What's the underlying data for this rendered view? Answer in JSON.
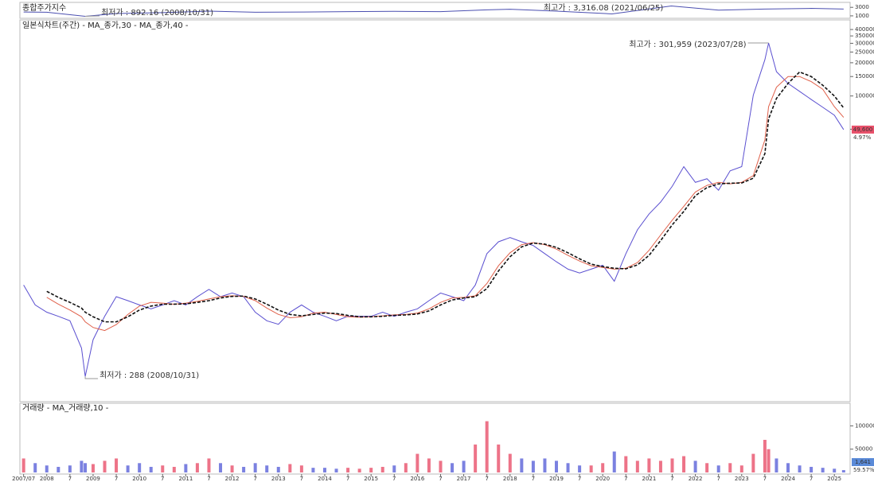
{
  "chart_data": [
    {
      "type": "line",
      "title": "종합주가지수",
      "x": [
        2007.5,
        2008.0,
        2008.83,
        2009.5,
        2010.5,
        2011.5,
        2012.5,
        2013.5,
        2014.5,
        2015.5,
        2016.5,
        2017.5,
        2018.0,
        2019.0,
        2020.2,
        2021.48,
        2022.5,
        2023.5,
        2024.5,
        2025.2
      ],
      "series": [
        {
          "color": "#4b4fb0",
          "values": [
            1900,
            1850,
            892.16,
            1550,
            1750,
            2100,
            1850,
            1900,
            2000,
            2050,
            2000,
            2400,
            2550,
            2100,
            1460,
            3316.08,
            2350,
            2600,
            2750,
            2600
          ]
        }
      ],
      "xlim": [
        2007.42,
        2025.34
      ],
      "ylim": [
        800,
        3600
      ],
      "yticks": [
        1000,
        3000
      ],
      "annotations": [
        "최고가 : 3,316.08 (2021/06/25)",
        "최저가 : 892.16 (2008/10/31)"
      ]
    },
    {
      "type": "line",
      "title": "일본식차트(주간) - MA_종가,30 - MA_종가,40 -",
      "log": true,
      "x": [
        2007.5,
        2007.75,
        2008.0,
        2008.25,
        2008.5,
        2008.75,
        2008.83,
        2009.0,
        2009.25,
        2009.5,
        2009.75,
        2010.0,
        2010.25,
        2010.5,
        2010.75,
        2011.0,
        2011.25,
        2011.5,
        2011.75,
        2012.0,
        2012.25,
        2012.5,
        2012.75,
        2013.0,
        2013.25,
        2013.5,
        2013.75,
        2014.0,
        2014.25,
        2014.5,
        2014.75,
        2015.0,
        2015.25,
        2015.5,
        2015.75,
        2016.0,
        2016.25,
        2016.5,
        2016.75,
        2017.0,
        2017.25,
        2017.5,
        2017.75,
        2018.0,
        2018.25,
        2018.5,
        2018.75,
        2019.0,
        2019.25,
        2019.5,
        2019.75,
        2020.0,
        2020.25,
        2020.5,
        2020.75,
        2021.0,
        2021.25,
        2021.5,
        2021.75,
        2022.0,
        2022.25,
        2022.5,
        2022.75,
        2023.0,
        2023.25,
        2023.5,
        2023.58,
        2023.75,
        2024.0,
        2024.25,
        2024.5,
        2024.75,
        2025.0,
        2025.2
      ],
      "series": [
        {
          "color": "#5a4fd0",
          "values": [
            1940,
            1280,
            1100,
            1010,
            920,
            520,
            288,
            620,
            1010,
            1520,
            1400,
            1280,
            1180,
            1280,
            1400,
            1280,
            1520,
            1770,
            1520,
            1640,
            1520,
            1100,
            920,
            855,
            1100,
            1280,
            1100,
            1010,
            920,
            1010,
            1010,
            1010,
            1100,
            1010,
            1100,
            1180,
            1400,
            1640,
            1520,
            1400,
            1940,
            3730,
            4780,
            5220,
            4780,
            4420,
            3730,
            3150,
            2700,
            2490,
            2700,
            2930,
            2100,
            3730,
            6140,
            8530,
            10950,
            15190,
            22900,
            16500,
            17800,
            14000,
            21000,
            22900,
            101700,
            213000,
            301959,
            166000,
            130000,
            110000,
            93000,
            79000,
            67000,
            49600
          ]
        },
        {
          "color": "#e0604a",
          "values": [
            null,
            null,
            1500,
            1300,
            1150,
            1000,
            900,
            800,
            750,
            850,
            1050,
            1250,
            1350,
            1330,
            1300,
            1330,
            1380,
            1450,
            1520,
            1550,
            1530,
            1400,
            1200,
            1050,
            980,
            1000,
            1080,
            1100,
            1050,
            1000,
            990,
            1000,
            1020,
            1040,
            1050,
            1080,
            1180,
            1350,
            1480,
            1500,
            1550,
            2000,
            2900,
            3800,
            4500,
            4700,
            4500,
            4100,
            3600,
            3200,
            2900,
            2800,
            2700,
            2750,
            3100,
            4000,
            5500,
            7500,
            10000,
            13500,
            15500,
            16500,
            16000,
            16500,
            19000,
            40000,
            80000,
            120000,
            150000,
            150000,
            135000,
            115000,
            80000,
            64000
          ]
        },
        {
          "color": "#111111",
          "dash": true,
          "values": [
            null,
            null,
            1700,
            1500,
            1350,
            1200,
            1100,
            1000,
            900,
            900,
            1000,
            1150,
            1250,
            1300,
            1300,
            1310,
            1350,
            1400,
            1480,
            1530,
            1540,
            1450,
            1300,
            1150,
            1050,
            1020,
            1050,
            1080,
            1070,
            1030,
            1000,
            1000,
            1010,
            1030,
            1040,
            1060,
            1130,
            1280,
            1420,
            1480,
            1520,
            1800,
            2600,
            3500,
            4300,
            4650,
            4550,
            4250,
            3800,
            3350,
            3000,
            2850,
            2750,
            2720,
            2950,
            3600,
            4900,
            6800,
            9000,
            12500,
            14800,
            16000,
            16200,
            16300,
            18000,
            30000,
            62000,
            95000,
            130000,
            165000,
            150000,
            125000,
            100000,
            78000
          ]
        }
      ],
      "xlim": [
        2007.42,
        2025.34
      ],
      "ylim": [
        176,
        450000
      ],
      "yticks": [
        50000,
        100000,
        150000,
        200000,
        250000,
        300000,
        350000,
        400000
      ],
      "annotations": [
        "최고가 : 301,959 (2023/07/28)",
        "최저가 : 288 (2008/10/31)"
      ],
      "last_label": "49,600",
      "change_label": "4.97%"
    },
    {
      "type": "bar",
      "title": "거래량 - MA_거래량,10 -",
      "x": [
        2007.5,
        2007.75,
        2008.0,
        2008.25,
        2008.5,
        2008.75,
        2008.83,
        2009.0,
        2009.25,
        2009.5,
        2009.75,
        2010.0,
        2010.25,
        2010.5,
        2010.75,
        2011.0,
        2011.25,
        2011.5,
        2011.75,
        2012.0,
        2012.25,
        2012.5,
        2012.75,
        2013.0,
        2013.25,
        2013.5,
        2013.75,
        2014.0,
        2014.25,
        2014.5,
        2014.75,
        2015.0,
        2015.25,
        2015.5,
        2015.75,
        2016.0,
        2016.25,
        2016.5,
        2016.75,
        2017.0,
        2017.25,
        2017.5,
        2017.75,
        2018.0,
        2018.25,
        2018.5,
        2018.75,
        2019.0,
        2019.25,
        2019.5,
        2019.75,
        2020.0,
        2020.25,
        2020.5,
        2020.75,
        2021.0,
        2021.25,
        2021.5,
        2021.75,
        2022.0,
        2022.25,
        2022.5,
        2022.75,
        2023.0,
        2023.25,
        2023.5,
        2023.58,
        2023.75,
        2024.0,
        2024.25,
        2024.5,
        2024.75,
        2025.0,
        2025.2
      ],
      "values": [
        30000,
        20000,
        15000,
        12000,
        15000,
        25000,
        20000,
        18000,
        25000,
        30000,
        15000,
        20000,
        12000,
        15000,
        12000,
        18000,
        20000,
        30000,
        20000,
        15000,
        12000,
        20000,
        15000,
        12000,
        18000,
        15000,
        10000,
        10000,
        8000,
        10000,
        8000,
        10000,
        12000,
        15000,
        20000,
        40000,
        30000,
        25000,
        20000,
        25000,
        60000,
        110000,
        60000,
        40000,
        30000,
        25000,
        30000,
        25000,
        20000,
        15000,
        15000,
        20000,
        45000,
        35000,
        25000,
        30000,
        25000,
        30000,
        35000,
        25000,
        20000,
        15000,
        20000,
        15000,
        40000,
        70000,
        50000,
        30000,
        20000,
        15000,
        12000,
        10000,
        8000,
        5000
      ],
      "up_color": "#e8506a",
      "down_color": "#5a62d8",
      "xlim": [
        2007.42,
        2025.34
      ],
      "ylim": [
        0,
        140000
      ],
      "yticks": [
        50000,
        100000
      ],
      "last_label": "1,641",
      "change_label": "59.57%",
      "xticks": [
        {
          "value": 2007.5,
          "label": "2007/07"
        },
        2008,
        {
          "value": 2008.5,
          "label": "7"
        },
        2009,
        {
          "value": 2009.5,
          "label": "7"
        },
        2010,
        {
          "value": 2010.5,
          "label": "7"
        },
        2011,
        {
          "value": 2011.5,
          "label": "7"
        },
        2012,
        {
          "value": 2012.5,
          "label": "7"
        },
        2013,
        {
          "value": 2013.5,
          "label": "7"
        },
        2014,
        {
          "value": 2014.5,
          "label": "7"
        },
        2015,
        {
          "value": 2015.5,
          "label": "7"
        },
        2016,
        {
          "value": 2016.5,
          "label": "7"
        },
        2017,
        {
          "value": 2017.5,
          "label": "7"
        },
        2018,
        {
          "value": 2018.5,
          "label": "7"
        },
        2019,
        {
          "value": 2019.5,
          "label": "7"
        },
        2020,
        {
          "value": 2020.5,
          "label": "7"
        },
        2021,
        {
          "value": 2021.5,
          "label": "7"
        },
        2022,
        {
          "value": 2022.5,
          "label": "7"
        },
        2023,
        {
          "value": 2023.5,
          "label": "7"
        },
        2024,
        {
          "value": 2024.5,
          "label": "7"
        },
        2025
      ]
    }
  ]
}
